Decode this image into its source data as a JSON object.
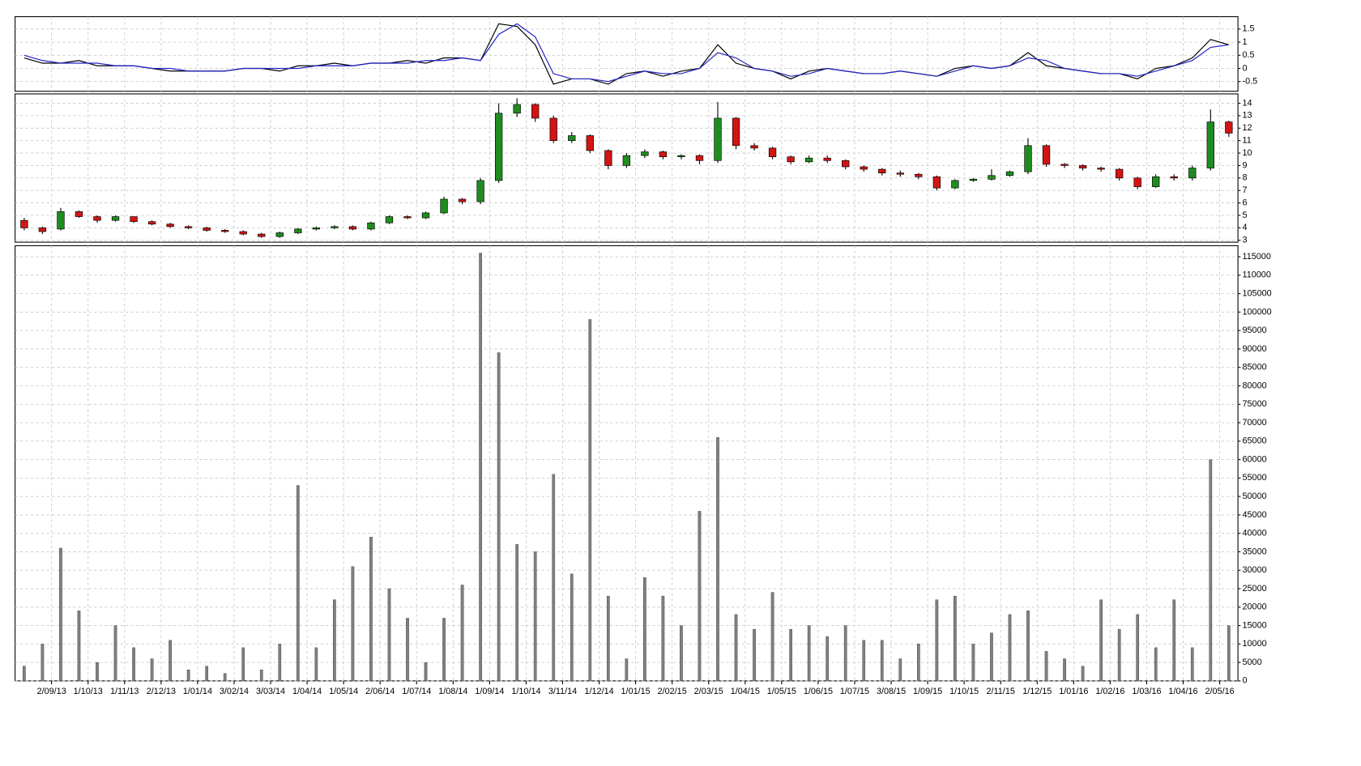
{
  "chart_data": [
    {
      "type": "line",
      "ylim": [
        -0.87,
        1.97
      ],
      "yticks": [
        -0.5,
        0,
        0.5,
        1,
        1.5
      ],
      "grid": true,
      "series": [
        {
          "color": "#000000",
          "values": [
            0.4,
            0.2,
            0.2,
            0.3,
            0.1,
            0.1,
            0.1,
            0.0,
            -0.1,
            -0.1,
            -0.1,
            -0.1,
            0.0,
            0.0,
            -0.1,
            0.1,
            0.1,
            0.2,
            0.1,
            0.2,
            0.2,
            0.3,
            0.2,
            0.4,
            0.4,
            0.3,
            1.7,
            1.6,
            0.9,
            -0.6,
            -0.4,
            -0.4,
            -0.6,
            -0.2,
            -0.1,
            -0.3,
            -0.1,
            0.0,
            0.9,
            0.2,
            0.0,
            -0.1,
            -0.4,
            -0.1,
            0.0,
            -0.1,
            -0.2,
            -0.2,
            -0.1,
            -0.2,
            -0.3,
            0.0,
            0.1,
            0.0,
            0.1,
            0.6,
            0.1,
            0.0,
            -0.1,
            -0.2,
            -0.2,
            -0.4,
            0.0,
            0.1,
            0.4,
            1.1,
            0.9
          ]
        },
        {
          "color": "#2323c8",
          "values": [
            0.5,
            0.3,
            0.2,
            0.2,
            0.2,
            0.1,
            0.1,
            0.0,
            0.0,
            -0.1,
            -0.1,
            -0.1,
            0.0,
            0.0,
            0.0,
            0.0,
            0.1,
            0.1,
            0.1,
            0.2,
            0.2,
            0.2,
            0.3,
            0.3,
            0.4,
            0.3,
            1.3,
            1.7,
            1.2,
            -0.2,
            -0.4,
            -0.4,
            -0.5,
            -0.3,
            -0.1,
            -0.2,
            -0.2,
            0.0,
            0.6,
            0.4,
            0.0,
            -0.1,
            -0.3,
            -0.2,
            0.0,
            -0.1,
            -0.2,
            -0.2,
            -0.1,
            -0.2,
            -0.3,
            -0.1,
            0.1,
            0.0,
            0.1,
            0.4,
            0.3,
            0.0,
            -0.1,
            -0.2,
            -0.2,
            -0.3,
            -0.1,
            0.1,
            0.3,
            0.8,
            0.9
          ]
        }
      ]
    },
    {
      "type": "candlestick",
      "ylim": [
        2.85,
        14.75
      ],
      "yticks": [
        3,
        4,
        5,
        6,
        7,
        8,
        9,
        10,
        11,
        12,
        13,
        14
      ],
      "grid": true,
      "up_color": "#1f8c1f",
      "down_color": "#d41414",
      "open": [
        4.6,
        4.0,
        3.9,
        5.3,
        4.9,
        4.6,
        4.9,
        4.5,
        4.3,
        4.1,
        4.0,
        3.8,
        3.7,
        3.5,
        3.3,
        3.6,
        3.9,
        4.0,
        4.1,
        3.9,
        4.4,
        4.9,
        4.8,
        5.2,
        6.3,
        6.1,
        7.8,
        13.2,
        13.9,
        12.8,
        11.0,
        11.4,
        10.2,
        9.0,
        9.8,
        10.1,
        9.7,
        9.8,
        9.4,
        12.8,
        10.6,
        10.4,
        9.7,
        9.3,
        9.6,
        9.4,
        8.9,
        8.7,
        8.4,
        8.3,
        8.1,
        7.2,
        7.8,
        7.9,
        8.2,
        8.5,
        10.6,
        9.1,
        9.0,
        8.8,
        8.7,
        8.0,
        7.3,
        8.1,
        8.0,
        8.8,
        12.5
      ],
      "high": [
        4.8,
        4.1,
        5.6,
        5.4,
        5.0,
        5.0,
        4.9,
        4.6,
        4.4,
        4.2,
        4.1,
        3.9,
        3.8,
        3.6,
        3.7,
        4.0,
        4.1,
        4.2,
        4.2,
        4.5,
        5.0,
        5.0,
        5.3,
        6.5,
        6.4,
        8.0,
        14.0,
        14.4,
        14.0,
        13.0,
        11.7,
        11.5,
        10.3,
        10.0,
        10.3,
        10.2,
        9.9,
        9.9,
        14.1,
        12.9,
        10.8,
        10.5,
        9.8,
        9.8,
        9.8,
        9.5,
        9.0,
        8.8,
        8.6,
        8.4,
        8.2,
        7.9,
        8.0,
        8.7,
        8.6,
        11.2,
        10.7,
        9.2,
        9.1,
        8.9,
        8.8,
        8.1,
        8.3,
        8.3,
        9.0,
        13.5,
        12.6
      ],
      "low": [
        3.8,
        3.5,
        3.8,
        4.8,
        4.4,
        4.5,
        4.4,
        4.2,
        4.0,
        3.9,
        3.7,
        3.6,
        3.4,
        3.2,
        3.2,
        3.5,
        3.8,
        3.9,
        3.8,
        3.8,
        4.3,
        4.7,
        4.7,
        5.1,
        5.9,
        5.9,
        7.6,
        12.9,
        12.5,
        10.8,
        10.8,
        10.0,
        8.7,
        8.8,
        9.6,
        9.5,
        9.5,
        9.1,
        9.2,
        10.3,
        10.2,
        9.5,
        9.1,
        9.2,
        9.2,
        8.7,
        8.5,
        8.2,
        8.1,
        7.9,
        7.0,
        7.1,
        7.7,
        7.8,
        8.1,
        8.3,
        8.9,
        8.8,
        8.6,
        8.5,
        7.8,
        7.1,
        7.2,
        7.8,
        7.8,
        8.6,
        11.3
      ],
      "close": [
        4.0,
        3.7,
        5.3,
        4.9,
        4.6,
        4.9,
        4.5,
        4.3,
        4.1,
        4.0,
        3.8,
        3.7,
        3.5,
        3.3,
        3.6,
        3.9,
        4.0,
        4.1,
        3.9,
        4.4,
        4.9,
        4.8,
        5.2,
        6.3,
        6.1,
        7.8,
        13.2,
        13.9,
        12.8,
        11.0,
        11.4,
        10.2,
        9.0,
        9.8,
        10.1,
        9.7,
        9.8,
        9.4,
        12.8,
        10.6,
        10.4,
        9.7,
        9.3,
        9.6,
        9.4,
        8.9,
        8.7,
        8.4,
        8.3,
        8.1,
        7.2,
        7.8,
        7.9,
        8.2,
        8.5,
        10.6,
        9.1,
        9.0,
        8.8,
        8.7,
        8.0,
        7.3,
        8.1,
        8.0,
        8.8,
        12.5,
        11.6
      ]
    },
    {
      "type": "bar",
      "ylim": [
        0,
        118000
      ],
      "yticks": [
        0,
        5000,
        10000,
        15000,
        20000,
        25000,
        30000,
        35000,
        40000,
        45000,
        50000,
        55000,
        60000,
        65000,
        70000,
        75000,
        80000,
        85000,
        90000,
        95000,
        100000,
        105000,
        110000,
        115000
      ],
      "grid": true,
      "color": "#808080",
      "categories": [
        null,
        null,
        "2/09/13",
        null,
        "1/10/13",
        null,
        "1/11/13",
        null,
        "2/12/13",
        null,
        "1/01/14",
        null,
        "3/02/14",
        null,
        "3/03/14",
        null,
        "1/04/14",
        null,
        "1/05/14",
        null,
        "2/06/14",
        null,
        "1/07/14",
        null,
        "1/08/14",
        null,
        "1/09/14",
        null,
        "1/10/14",
        null,
        "3/11/14",
        null,
        "1/12/14",
        null,
        "1/01/15",
        null,
        "2/02/15",
        null,
        "2/03/15",
        null,
        "1/04/15",
        null,
        "1/05/15",
        null,
        "1/06/15",
        null,
        "1/07/15",
        null,
        "3/08/15",
        null,
        "1/09/15",
        null,
        "1/10/15",
        null,
        "2/11/15",
        null,
        "1/12/15",
        null,
        "1/01/16",
        null,
        "1/02/16",
        null,
        "1/03/16",
        null,
        "1/04/16",
        null,
        "2/05/16"
      ],
      "values": [
        4000,
        10000,
        36000,
        19000,
        5000,
        15000,
        9000,
        6000,
        11000,
        3000,
        4000,
        2000,
        9000,
        3000,
        10000,
        53000,
        9000,
        22000,
        31000,
        39000,
        25000,
        17000,
        5000,
        17000,
        26000,
        116000,
        89000,
        37000,
        35000,
        56000,
        29000,
        98000,
        23000,
        6000,
        28000,
        23000,
        15000,
        46000,
        66000,
        18000,
        14000,
        24000,
        14000,
        15000,
        12000,
        15000,
        11000,
        11000,
        6000,
        10000,
        22000,
        23000,
        10000,
        13000,
        18000,
        19000,
        8000,
        6000,
        4000,
        22000,
        14000,
        18000,
        9000,
        22000,
        9000,
        60000,
        15000
      ]
    }
  ]
}
